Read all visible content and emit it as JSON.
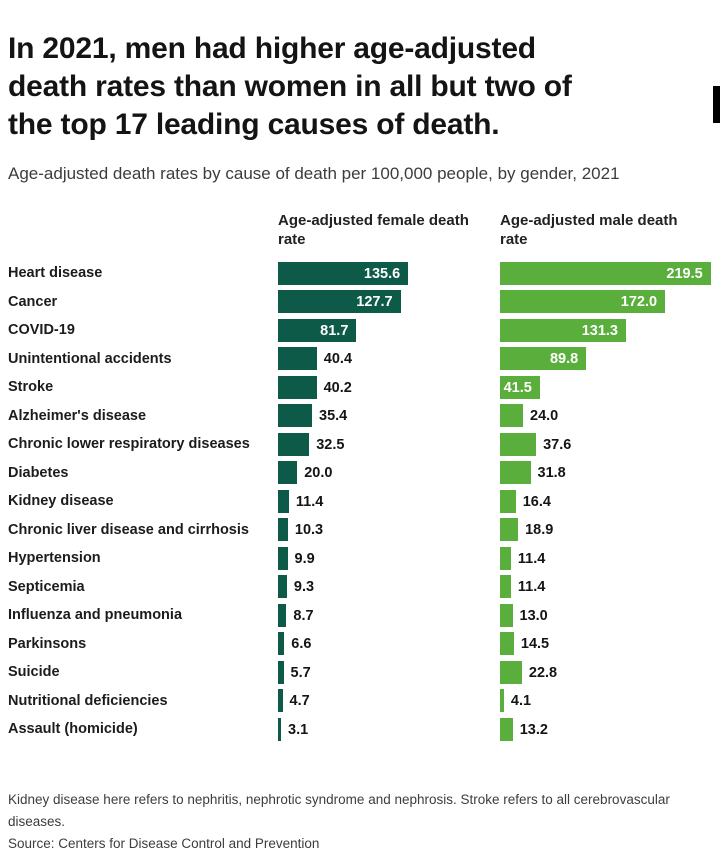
{
  "header": {
    "title": "In 2021, men had higher age-adjusted death rates than women in all but two of the top 17 leading causes of death.",
    "subtitle": "Age-adjusted death rates by cause of death per 100,000 people, by gender, 2021"
  },
  "chart_data": {
    "type": "bar",
    "orientation": "horizontal",
    "title": "In 2021, men had higher age-adjusted death rates than women in all but two of the top 17 leading causes of death.",
    "subtitle": "Age-adjusted death rates by cause of death per 100,000 people, by gender, 2021",
    "unit": "deaths per 100,000 people",
    "value_labels": true,
    "value_label_decimals": 1,
    "grid": false,
    "axis_ticks": "none (values labeled on bars)",
    "xlim": [
      0,
      230
    ],
    "legend_position": "column headers above each bar group",
    "categories": [
      "Heart disease",
      "Cancer",
      "COVID-19",
      "Unintentional accidents",
      "Stroke",
      "Alzheimer's disease",
      "Chronic lower respiratory diseases",
      "Diabetes",
      "Kidney disease",
      "Chronic liver disease and cirrhosis",
      "Hypertension",
      "Septicemia",
      "Influenza and pneumonia",
      "Parkinsons",
      "Suicide",
      "Nutritional deficiencies",
      "Assault (homicide)"
    ],
    "series": [
      {
        "name": "Age-adjusted female death rate",
        "color": "#0d5a48",
        "values": [
          135.6,
          127.7,
          81.7,
          40.4,
          40.2,
          35.4,
          32.5,
          20.0,
          11.4,
          10.3,
          9.9,
          9.3,
          8.7,
          6.6,
          5.7,
          4.7,
          3.1
        ]
      },
      {
        "name": "Age-adjusted male death rate",
        "color": "#5aaf3c",
        "values": [
          219.5,
          172.0,
          131.3,
          89.8,
          41.5,
          24.0,
          37.6,
          31.8,
          16.4,
          18.9,
          11.4,
          11.4,
          13.0,
          14.5,
          22.8,
          4.1,
          13.2
        ]
      }
    ]
  },
  "footer": {
    "note": "Kidney disease here refers to nephritis, nephrotic syndrome and nephrosis. Stroke refers to all cerebrovascular diseases.",
    "source": "Source: Centers for Disease Control and Prevention"
  }
}
